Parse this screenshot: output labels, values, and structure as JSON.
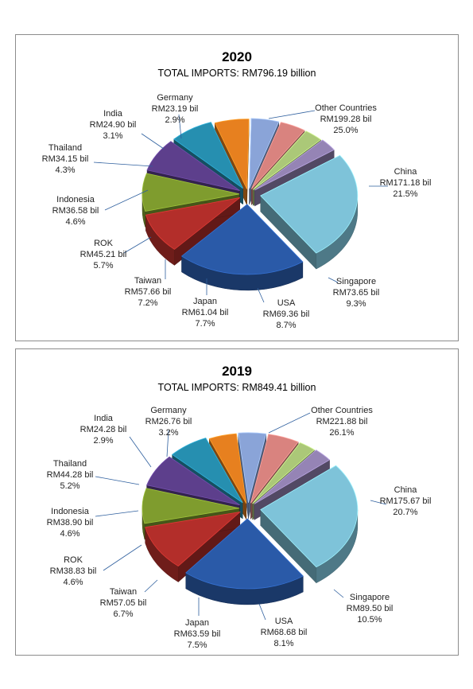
{
  "chart_data": [
    {
      "type": "pie",
      "title": "2020",
      "subtitle": "TOTAL IMPORTS: RM796.19 billion",
      "slices": [
        {
          "name": "China",
          "value": 171.18,
          "value_label": "RM171.18 bil",
          "pct_label": "21.5%",
          "color": "#2a5aa8"
        },
        {
          "name": "Singapore",
          "value": 73.65,
          "value_label": "RM73.65 bil",
          "pct_label": "9.3%",
          "color": "#b32e2a"
        },
        {
          "name": "USA",
          "value": 69.36,
          "value_label": "RM69.36 bil",
          "pct_label": "8.7%",
          "color": "#7f9c2e"
        },
        {
          "name": "Japan",
          "value": 61.04,
          "value_label": "RM61.04 bil",
          "pct_label": "7.7%",
          "color": "#5d3f8c"
        },
        {
          "name": "Taiwan",
          "value": 57.66,
          "value_label": "RM57.66 bil",
          "pct_label": "7.2%",
          "color": "#268fb0"
        },
        {
          "name": "ROK",
          "value": 45.21,
          "value_label": "RM45.21 bil",
          "pct_label": "5.7%",
          "color": "#e7801f"
        },
        {
          "name": "Indonesia",
          "value": 36.58,
          "value_label": "RM36.58 bil",
          "pct_label": "4.6%",
          "color": "#8aa4d8"
        },
        {
          "name": "Thailand",
          "value": 34.15,
          "value_label": "RM34.15 bil",
          "pct_label": "4.3%",
          "color": "#d9837f"
        },
        {
          "name": "India",
          "value": 24.9,
          "value_label": "RM24.90 bil",
          "pct_label": "3.1%",
          "color": "#abc878"
        },
        {
          "name": "Germany",
          "value": 23.19,
          "value_label": "RM23.19 bil",
          "pct_label": "2.9%",
          "color": "#9584b5"
        },
        {
          "name": "Other Countries",
          "value": 199.28,
          "value_label": "RM199.28 bil",
          "pct_label": "25.0%",
          "color": "#7ec3d9"
        }
      ]
    },
    {
      "type": "pie",
      "title": "2019",
      "subtitle": "TOTAL IMPORTS: RM849.41 billion",
      "slices": [
        {
          "name": "China",
          "value": 175.67,
          "value_label": "RM175.67 bil",
          "pct_label": "20.7%",
          "color": "#2a5aa8"
        },
        {
          "name": "Singapore",
          "value": 89.5,
          "value_label": "RM89.50 bil",
          "pct_label": "10.5%",
          "color": "#b32e2a"
        },
        {
          "name": "USA",
          "value": 68.68,
          "value_label": "RM68.68 bil",
          "pct_label": "8.1%",
          "color": "#7f9c2e"
        },
        {
          "name": "Japan",
          "value": 63.59,
          "value_label": "RM63.59 bil",
          "pct_label": "7.5%",
          "color": "#5d3f8c"
        },
        {
          "name": "Taiwan",
          "value": 57.05,
          "value_label": "RM57.05 bil",
          "pct_label": "6.7%",
          "color": "#268fb0"
        },
        {
          "name": "ROK",
          "value": 38.83,
          "value_label": "RM38.83 bil",
          "pct_label": "4.6%",
          "color": "#e7801f"
        },
        {
          "name": "Indonesia",
          "value": 38.9,
          "value_label": "RM38.90 bil",
          "pct_label": "4.6%",
          "color": "#8aa4d8"
        },
        {
          "name": "Thailand",
          "value": 44.28,
          "value_label": "RM44.28 bil",
          "pct_label": "5.2%",
          "color": "#d9837f"
        },
        {
          "name": "India",
          "value": 24.28,
          "value_label": "RM24.28 bil",
          "pct_label": "2.9%",
          "color": "#abc878"
        },
        {
          "name": "Germany",
          "value": 26.76,
          "value_label": "RM26.76 bil",
          "pct_label": "3.2%",
          "color": "#9584b5"
        },
        {
          "name": "Other Countries",
          "value": 221.88,
          "value_label": "RM221.88 bil",
          "pct_label": "26.1%",
          "color": "#7ec3d9"
        }
      ]
    }
  ]
}
